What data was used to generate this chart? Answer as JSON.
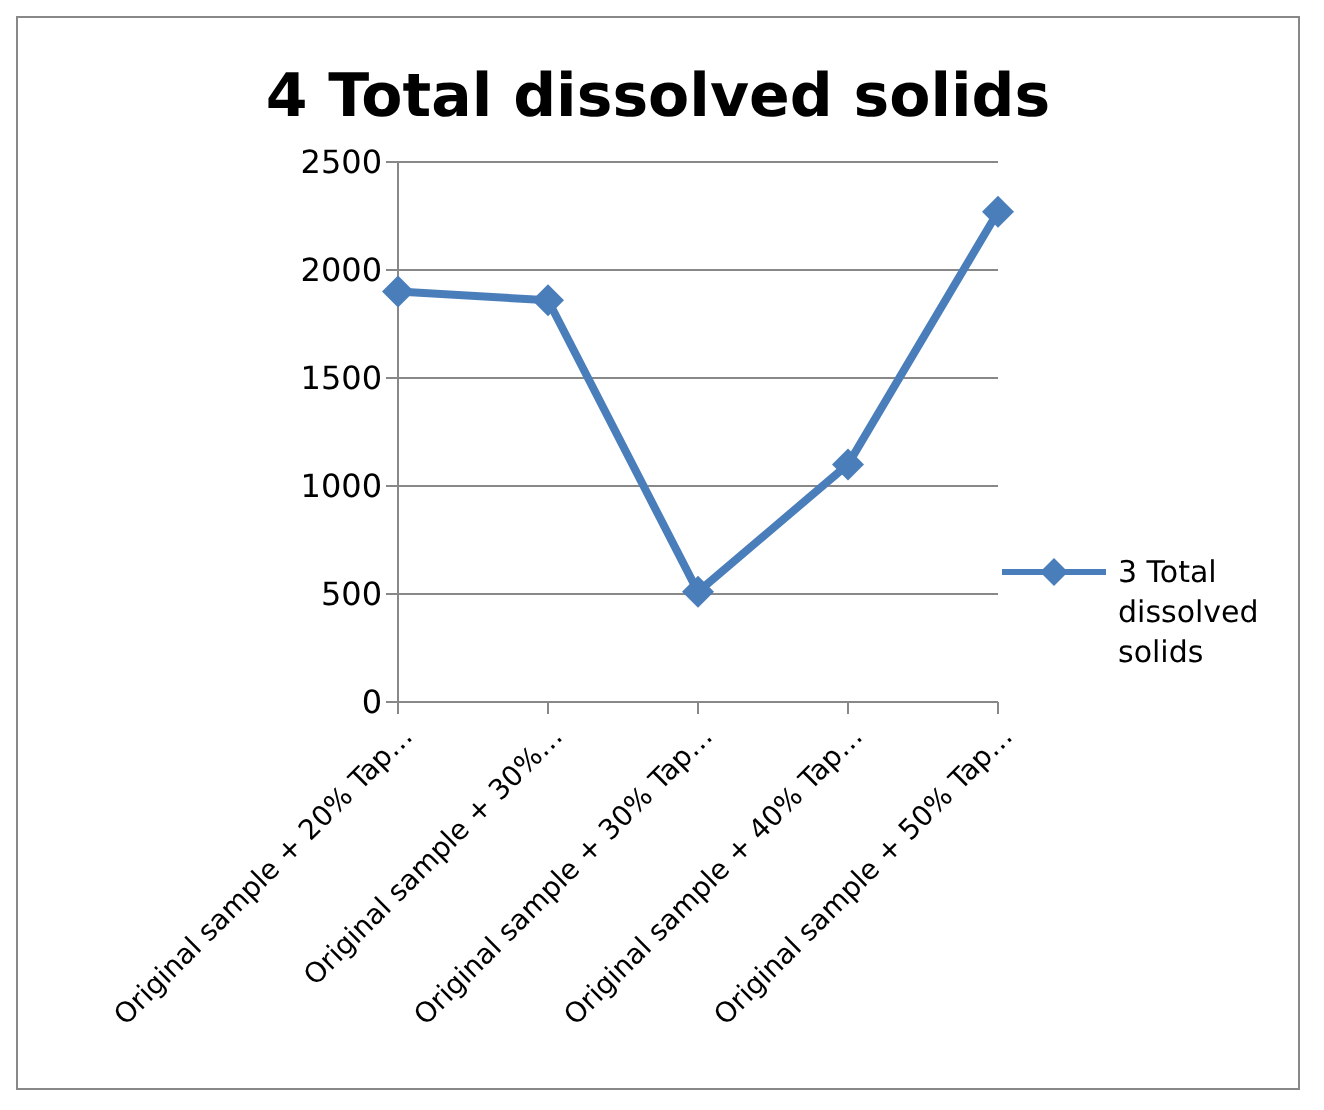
{
  "chart_data": {
    "type": "line",
    "title": "4 Total dissolved solids",
    "categories": [
      "Original sample + 20% Tap…",
      "Original sample + 30%…",
      "Original sample + 30% Tap…",
      "Original sample + 40% Tap…",
      "Original sample + 50% Tap…"
    ],
    "series": [
      {
        "name": "3 Total dissolved solids",
        "color": "#4a7ebb",
        "values": [
          1900,
          1860,
          510,
          1100,
          2270
        ]
      }
    ],
    "ylim": [
      0,
      2500
    ],
    "yticks": [
      0,
      500,
      1000,
      1500,
      2000,
      2500
    ],
    "grid": "y",
    "legend": "right",
    "marker": "diamond",
    "line_style": "solid"
  }
}
